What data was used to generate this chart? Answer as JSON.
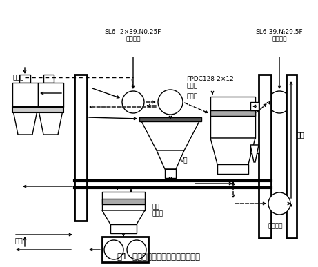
{
  "title": "图1  单条水泥粉磨生产线的工艺流程",
  "labels": {
    "xuanfengtong": "旋风筒",
    "wuliao": "物料",
    "xunhuanfengji": "SL6--2×39.N0.25F\n循环风机",
    "xuanfennji": "选粉机",
    "vxuan": "V选",
    "wenliu": "稳流\n恒重仓",
    "shoucheng": "PPDC128-2×12\n收尘器",
    "xitongfengji": "SL6-39.№29.5F\n系统风机",
    "ruku": "入库",
    "moweifelgji": "磨尾风机"
  },
  "bg_color": "#ffffff",
  "line_color": "#000000"
}
